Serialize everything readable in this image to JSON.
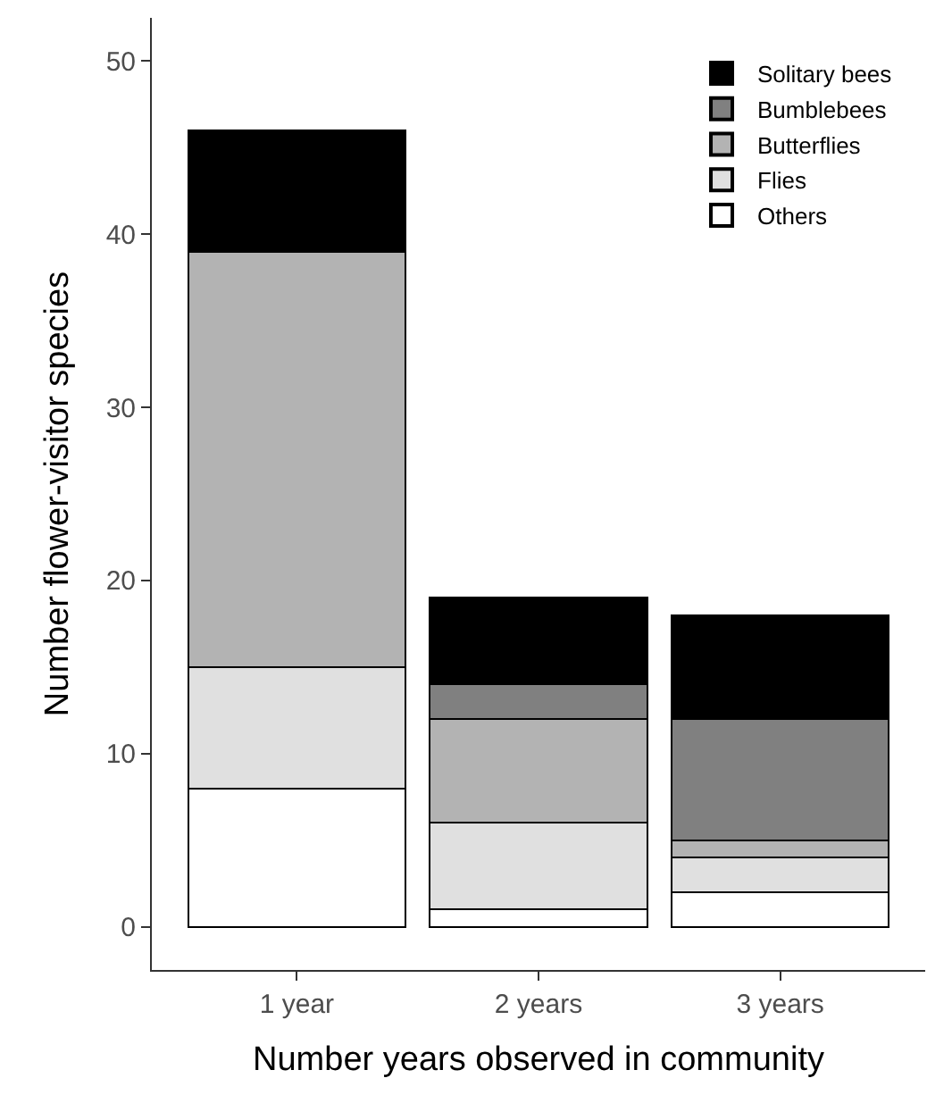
{
  "chart_data": {
    "type": "bar",
    "stacked": true,
    "xlabel": "Number years observed in community",
    "ylabel": "Number flower-visitor species",
    "categories": [
      "1 year",
      "2 years",
      "3 years"
    ],
    "series": [
      {
        "name": "Others",
        "color": "#ffffff",
        "values": [
          8,
          1,
          2
        ]
      },
      {
        "name": "Flies",
        "color": "#e0e0e0",
        "values": [
          7,
          5,
          2
        ]
      },
      {
        "name": "Butterflies",
        "color": "#b3b3b3",
        "values": [
          24,
          6,
          1
        ]
      },
      {
        "name": "Bumblebees",
        "color": "#808080",
        "values": [
          0,
          2,
          7
        ]
      },
      {
        "name": "Solitary bees",
        "color": "#000000",
        "values": [
          7,
          5,
          6
        ]
      }
    ],
    "ylim": [
      -2.5,
      52.5
    ],
    "yticks": [
      0,
      10,
      20,
      30,
      40,
      50
    ],
    "legend": "top right"
  }
}
